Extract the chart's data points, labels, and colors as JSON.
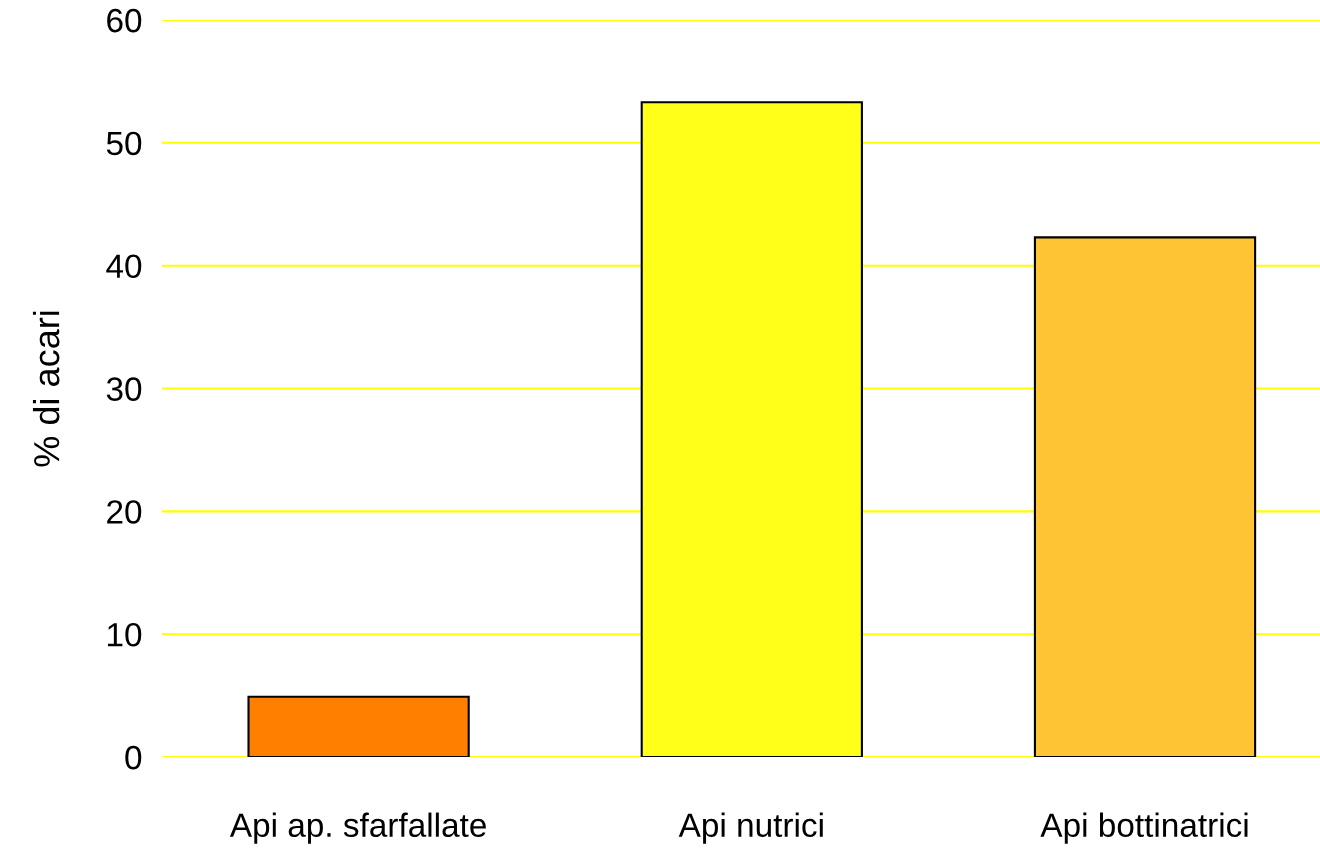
{
  "chart_data": {
    "type": "bar",
    "ylabel": "% di acari",
    "categories": [
      "Api ap. sfarfallate",
      "Api nutrici",
      "Api bottinatrici"
    ],
    "values": [
      4.9,
      53.3,
      42.3
    ],
    "colors": [
      "#ff8000",
      "#ffff1a",
      "#ffc433"
    ],
    "ylim": [
      0,
      60
    ],
    "yticks": [
      0,
      10,
      20,
      30,
      40,
      50,
      60
    ],
    "grid": "y"
  }
}
